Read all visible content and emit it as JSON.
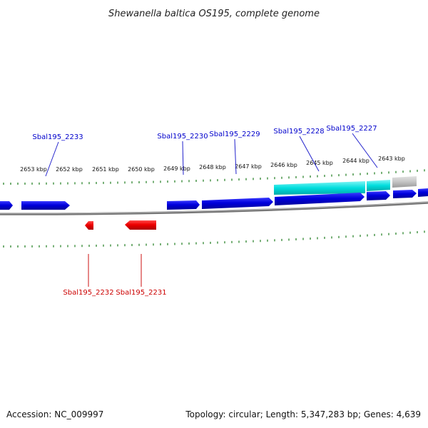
{
  "title": "Shewanella baltica OS195, complete genome",
  "footer": {
    "accession": "Accession: NC_009997",
    "summary": "Topology: circular; Length: 5,347,283 bp; Genes: 4,639"
  },
  "colors": {
    "forward_gene": "#0000dd",
    "reverse_gene": "#ee0000",
    "highlight": "#00dddd",
    "other": "#c4c4c4",
    "tick": "#1a7a1a",
    "backbone": "#777777"
  },
  "ticks": [
    {
      "label": "2653 kbp"
    },
    {
      "label": "2652 kbp"
    },
    {
      "label": "2651 kbp"
    },
    {
      "label": "2650 kbp"
    },
    {
      "label": "2649 kbp"
    },
    {
      "label": "2648 kbp"
    },
    {
      "label": "2647 kbp"
    },
    {
      "label": "2646 kbp"
    },
    {
      "label": "2645 kbp"
    },
    {
      "label": "2644 kbp"
    },
    {
      "label": "2643 kbp"
    }
  ],
  "genes_forward": [
    {
      "label": "Sbal195_2233"
    },
    {
      "label": "Sbal195_2230"
    },
    {
      "label": "Sbal195_2229"
    },
    {
      "label": "Sbal195_2228"
    },
    {
      "label": "Sbal195_2227"
    }
  ],
  "genes_reverse": [
    {
      "label": "Sbal195_2232"
    },
    {
      "label": "Sbal195_2231"
    }
  ]
}
